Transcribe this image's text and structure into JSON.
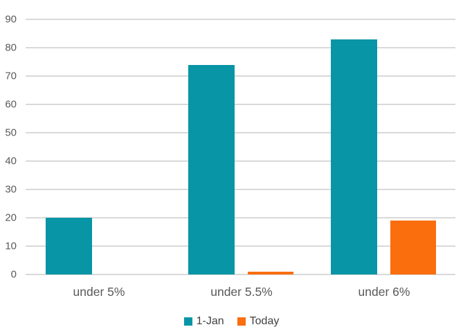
{
  "chart_data": {
    "type": "bar",
    "title": "",
    "xlabel": "",
    "ylabel": "",
    "categories": [
      "under 5%",
      "under 5.5%",
      "under 6%"
    ],
    "series": [
      {
        "name": "1-Jan",
        "color": "#0895A6",
        "values": [
          20,
          74,
          83
        ]
      },
      {
        "name": "Today",
        "color": "#FA6E0E",
        "values": [
          0,
          1,
          19
        ]
      }
    ],
    "ylim": [
      0,
      90
    ],
    "yticks": [
      0,
      10,
      20,
      30,
      40,
      50,
      60,
      70,
      80,
      90
    ],
    "grid": true,
    "legend_position": "bottom",
    "colors": {
      "gridline": "#D9D9D9",
      "tick_label": "#595959",
      "category_label": "#595959",
      "legend_text": "#404040",
      "background": "#FFFFFF"
    }
  }
}
